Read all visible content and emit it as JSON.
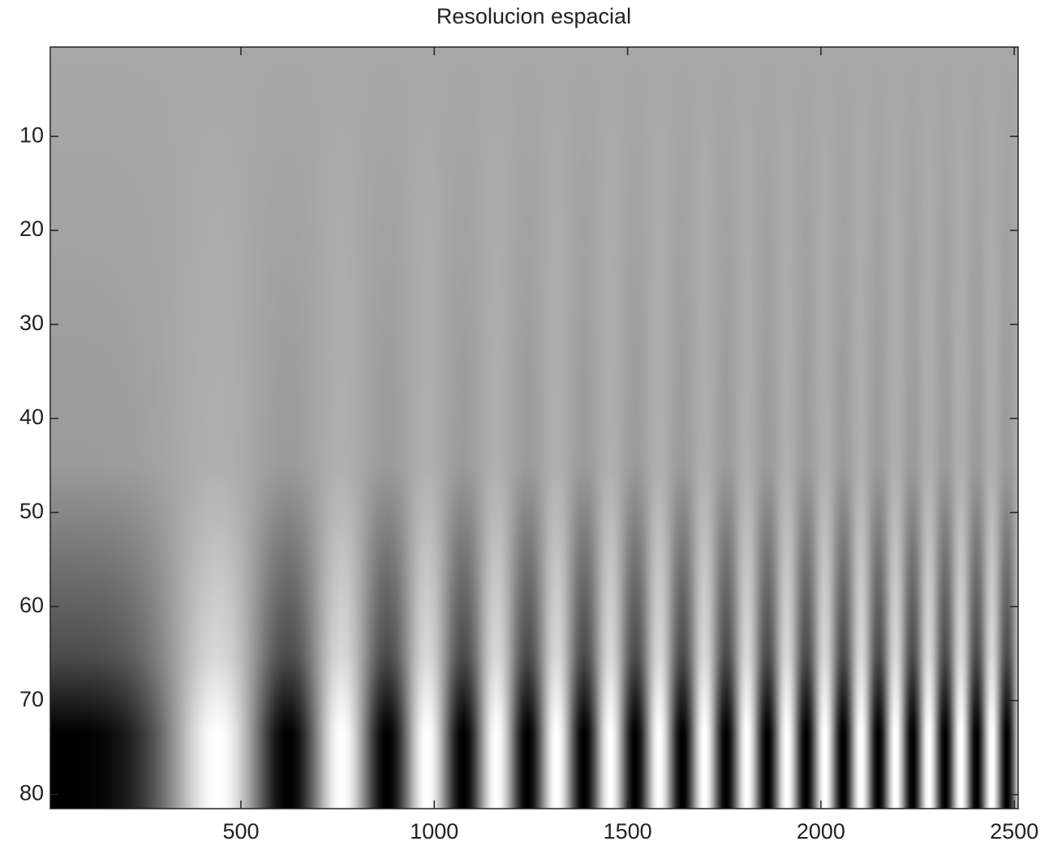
{
  "chart_data": {
    "type": "image",
    "title": "Resolucion espacial",
    "xlim": [
      7,
      2510
    ],
    "xticks": [
      500,
      1000,
      1500,
      2000,
      2500
    ],
    "ylim": [
      0.5,
      81.5
    ],
    "yticks": [
      10,
      20,
      30,
      40,
      50,
      60,
      70,
      80
    ],
    "y_reversed": true,
    "colormap": "gray"
  }
}
